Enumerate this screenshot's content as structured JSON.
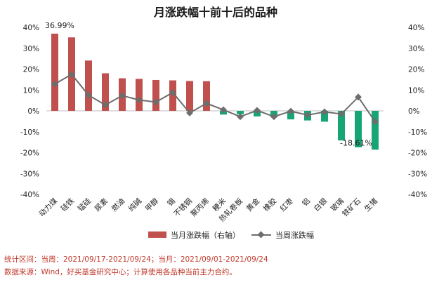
{
  "chart_data": {
    "type": "bar",
    "title": "月涨跌幅十前十后的品种",
    "categories": [
      "动力煤",
      "硅铁",
      "锰硅",
      "尿素",
      "燃油",
      "纯碱",
      "甲醇",
      "锡",
      "不锈钢",
      "聚丙烯",
      "粳米",
      "热轧卷板",
      "黄金",
      "橡胶",
      "红枣",
      "铝",
      "白银",
      "玻璃",
      "铁矿石",
      "生猪"
    ],
    "series": [
      {
        "name": "当月涨跌幅（右轴）",
        "kind": "bar",
        "values": [
          36.99,
          35.2,
          24.1,
          18.0,
          15.6,
          15.3,
          14.8,
          14.6,
          14.3,
          14.2,
          -1.8,
          -1.6,
          -2.7,
          -3.0,
          -4.1,
          -4.6,
          -5.2,
          -14.2,
          -17.5,
          -18.61
        ],
        "positive_color": "#c0504d",
        "negative_color": "#17a673"
      },
      {
        "name": "当周涨跌幅",
        "kind": "line",
        "values": [
          12.8,
          17.5,
          7.5,
          2.8,
          7.3,
          5.2,
          4.2,
          8.8,
          -1.0,
          3.6,
          0.5,
          -2.8,
          0.2,
          -2.8,
          -0.2,
          -2.0,
          -0.5,
          -1.5,
          6.6,
          -5.2
        ],
        "color": "#6d6d6d"
      }
    ],
    "data_labels": [
      "36.99%",
      "-18.61%"
    ],
    "ylim": [
      -40,
      40
    ],
    "yticks": [
      "-40%",
      "-30%",
      "-20%",
      "-10%",
      "0%",
      "10%",
      "20%",
      "30%",
      "40%"
    ],
    "grid": false,
    "legend": "bottom"
  },
  "footer": {
    "line1": "统计区间：当周：2021/09/17-2021/09/24；当月：2021/09/01-2021/09/24",
    "line2": "数据来源：Wind，好买基金研究中心；计算使用各品种当前主力合约。"
  }
}
